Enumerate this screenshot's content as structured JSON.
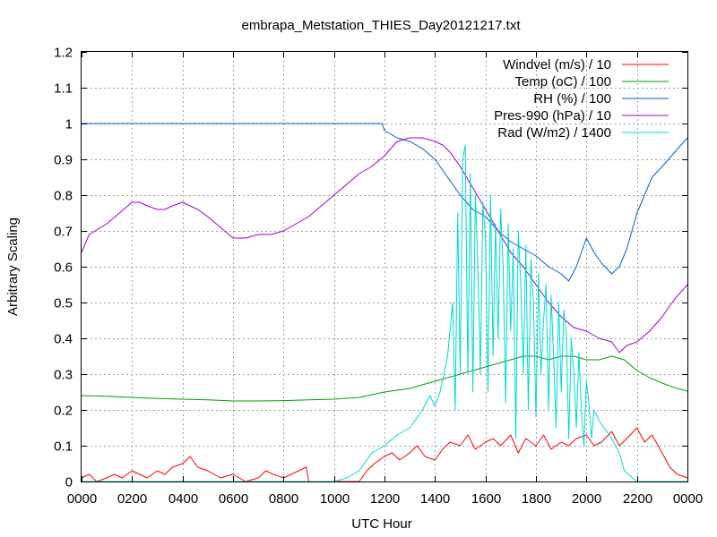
{
  "chart_data": {
    "type": "line",
    "title": "embrapa_Metstation_THIES_Day20121217.txt",
    "xlabel": "UTC Hour",
    "ylabel": "Arbitrary Scaling",
    "xlim": [
      0,
      24
    ],
    "ylim": [
      0,
      1.2
    ],
    "grid": true,
    "legend_position": "top-right",
    "x_tick_labels": [
      "0000",
      "0200",
      "0400",
      "0600",
      "0800",
      "1000",
      "1200",
      "1400",
      "1600",
      "1800",
      "2000",
      "2200",
      "0000"
    ],
    "y_tick_labels": [
      "0",
      "0.1",
      "0.2",
      "0.3",
      "0.4",
      "0.5",
      "0.6",
      "0.7",
      "0.8",
      "0.9",
      "1",
      "1.1",
      "1.2"
    ],
    "series": [
      {
        "name": "Windvel (m/s) / 10",
        "color": "#ff0000",
        "x": [
          0,
          0.3,
          0.6,
          1,
          1.3,
          1.6,
          2,
          2.3,
          2.6,
          3,
          3.3,
          3.6,
          4,
          4.3,
          4.6,
          5,
          5.5,
          6,
          6.5,
          7,
          7.3,
          7.6,
          8,
          8.3,
          8.6,
          8.9,
          9,
          10,
          10.5,
          11,
          11.3,
          11.6,
          12,
          12.3,
          12.6,
          13,
          13.3,
          13.6,
          14,
          14.3,
          14.6,
          15,
          15.3,
          15.6,
          16,
          16.3,
          16.6,
          17,
          17.3,
          17.6,
          18,
          18.3,
          18.6,
          19,
          19.3,
          19.6,
          20,
          20.3,
          20.6,
          21,
          21.3,
          21.6,
          22,
          22.3,
          22.6,
          23,
          23.3,
          23.6,
          24
        ],
        "y": [
          0.01,
          0.02,
          0.0,
          0.01,
          0.02,
          0.01,
          0.03,
          0.02,
          0.01,
          0.03,
          0.02,
          0.04,
          0.05,
          0.07,
          0.04,
          0.03,
          0.01,
          0.02,
          0.0,
          0.01,
          0.03,
          0.02,
          0.01,
          0.02,
          0.03,
          0.04,
          0.0,
          0.0,
          0.0,
          0.0,
          0.03,
          0.05,
          0.07,
          0.08,
          0.06,
          0.08,
          0.1,
          0.07,
          0.06,
          0.09,
          0.11,
          0.1,
          0.13,
          0.09,
          0.11,
          0.12,
          0.1,
          0.13,
          0.08,
          0.12,
          0.1,
          0.13,
          0.09,
          0.11,
          0.1,
          0.12,
          0.13,
          0.1,
          0.11,
          0.14,
          0.1,
          0.12,
          0.15,
          0.11,
          0.13,
          0.08,
          0.04,
          0.02,
          0.01
        ]
      },
      {
        "name": "Temp (oC) / 100",
        "color": "#00a000",
        "x": [
          0,
          1,
          2,
          3,
          4,
          5,
          6,
          7,
          8,
          9,
          10,
          11,
          12,
          13,
          14,
          14.5,
          15,
          15.5,
          16,
          16.5,
          17,
          17.5,
          18,
          18.5,
          19,
          19.5,
          20,
          20.5,
          21,
          21.5,
          22,
          22.5,
          23,
          23.5,
          24
        ],
        "y": [
          0.24,
          0.238,
          0.235,
          0.232,
          0.23,
          0.228,
          0.225,
          0.225,
          0.226,
          0.228,
          0.23,
          0.235,
          0.25,
          0.26,
          0.28,
          0.29,
          0.3,
          0.31,
          0.32,
          0.33,
          0.34,
          0.35,
          0.35,
          0.34,
          0.35,
          0.35,
          0.34,
          0.34,
          0.35,
          0.34,
          0.31,
          0.29,
          0.275,
          0.262,
          0.252
        ]
      },
      {
        "name": "RH (%) / 100",
        "color": "#0060d0",
        "x": [
          0,
          6,
          11.9,
          12,
          12.5,
          13,
          13.5,
          14,
          14.5,
          15,
          15.5,
          16,
          16.5,
          17,
          17.5,
          18,
          18.5,
          19,
          19.3,
          19.6,
          20,
          20.3,
          20.6,
          21,
          21.3,
          21.6,
          22,
          22.3,
          22.6,
          23,
          23.5,
          24
        ],
        "y": [
          1.0,
          1.0,
          1.0,
          0.98,
          0.96,
          0.95,
          0.93,
          0.9,
          0.85,
          0.8,
          0.76,
          0.74,
          0.7,
          0.67,
          0.65,
          0.63,
          0.6,
          0.58,
          0.56,
          0.6,
          0.68,
          0.64,
          0.61,
          0.58,
          0.6,
          0.65,
          0.75,
          0.8,
          0.85,
          0.88,
          0.92,
          0.96
        ]
      },
      {
        "name": "Pres-990 (hPa) / 10",
        "color": "#a000d0",
        "x": [
          0,
          0.3,
          1,
          1.5,
          2,
          2.3,
          2.6,
          3,
          3.3,
          3.6,
          4,
          4.3,
          4.6,
          5,
          5.5,
          6,
          6.5,
          7,
          7.5,
          8,
          8.5,
          9,
          9.5,
          10,
          10.5,
          11,
          11.5,
          12,
          12.5,
          13,
          13.5,
          14,
          14.3,
          14.6,
          15,
          15.5,
          16,
          16.5,
          17,
          17.5,
          18,
          18.5,
          19,
          19.5,
          20,
          20.5,
          21,
          21.3,
          21.6,
          22,
          22.5,
          23,
          23.5,
          24
        ],
        "y": [
          0.64,
          0.69,
          0.72,
          0.75,
          0.78,
          0.78,
          0.77,
          0.76,
          0.76,
          0.77,
          0.78,
          0.77,
          0.76,
          0.74,
          0.71,
          0.68,
          0.68,
          0.69,
          0.69,
          0.7,
          0.72,
          0.74,
          0.77,
          0.8,
          0.83,
          0.86,
          0.88,
          0.91,
          0.95,
          0.96,
          0.96,
          0.95,
          0.94,
          0.92,
          0.88,
          0.82,
          0.76,
          0.7,
          0.64,
          0.6,
          0.55,
          0.5,
          0.46,
          0.43,
          0.42,
          0.4,
          0.39,
          0.36,
          0.38,
          0.39,
          0.42,
          0.46,
          0.51,
          0.55
        ]
      },
      {
        "name": "Rad (W/m2) / 1400",
        "color": "#00d8d8",
        "x": [
          0,
          10,
          10.5,
          11,
          11.5,
          12,
          12.5,
          13,
          13.5,
          13.8,
          14,
          14.2,
          14.5,
          14.7,
          14.8,
          14.9,
          15,
          15.1,
          15.2,
          15.3,
          15.4,
          15.5,
          15.6,
          15.7,
          15.8,
          15.9,
          16,
          16.1,
          16.2,
          16.3,
          16.4,
          16.5,
          16.6,
          16.7,
          16.8,
          16.9,
          17,
          17.1,
          17.2,
          17.3,
          17.4,
          17.5,
          17.6,
          17.7,
          17.8,
          17.9,
          18,
          18.1,
          18.2,
          18.3,
          18.4,
          18.5,
          18.6,
          18.7,
          18.8,
          18.9,
          19,
          19.1,
          19.2,
          19.3,
          19.4,
          19.5,
          19.6,
          19.7,
          19.8,
          19.9,
          20,
          20.1,
          20.2,
          20.3,
          20.5,
          20.7,
          21,
          21.3,
          21.5,
          22,
          22.5,
          24
        ],
        "y": [
          0.0,
          0.0,
          0.01,
          0.03,
          0.08,
          0.1,
          0.13,
          0.15,
          0.2,
          0.24,
          0.21,
          0.25,
          0.35,
          0.5,
          0.2,
          0.75,
          0.3,
          0.9,
          0.94,
          0.3,
          0.86,
          0.25,
          0.8,
          0.6,
          0.3,
          0.78,
          0.68,
          0.25,
          0.8,
          0.35,
          0.72,
          0.4,
          0.76,
          0.6,
          0.22,
          0.72,
          0.42,
          0.65,
          0.12,
          0.7,
          0.55,
          0.3,
          0.66,
          0.2,
          0.62,
          0.5,
          0.18,
          0.58,
          0.3,
          0.45,
          0.55,
          0.2,
          0.52,
          0.35,
          0.15,
          0.5,
          0.25,
          0.48,
          0.42,
          0.12,
          0.4,
          0.3,
          0.15,
          0.36,
          0.2,
          0.1,
          0.28,
          0.22,
          0.12,
          0.2,
          0.17,
          0.15,
          0.12,
          0.08,
          0.03,
          0.0,
          0.0,
          0.0
        ]
      }
    ]
  }
}
